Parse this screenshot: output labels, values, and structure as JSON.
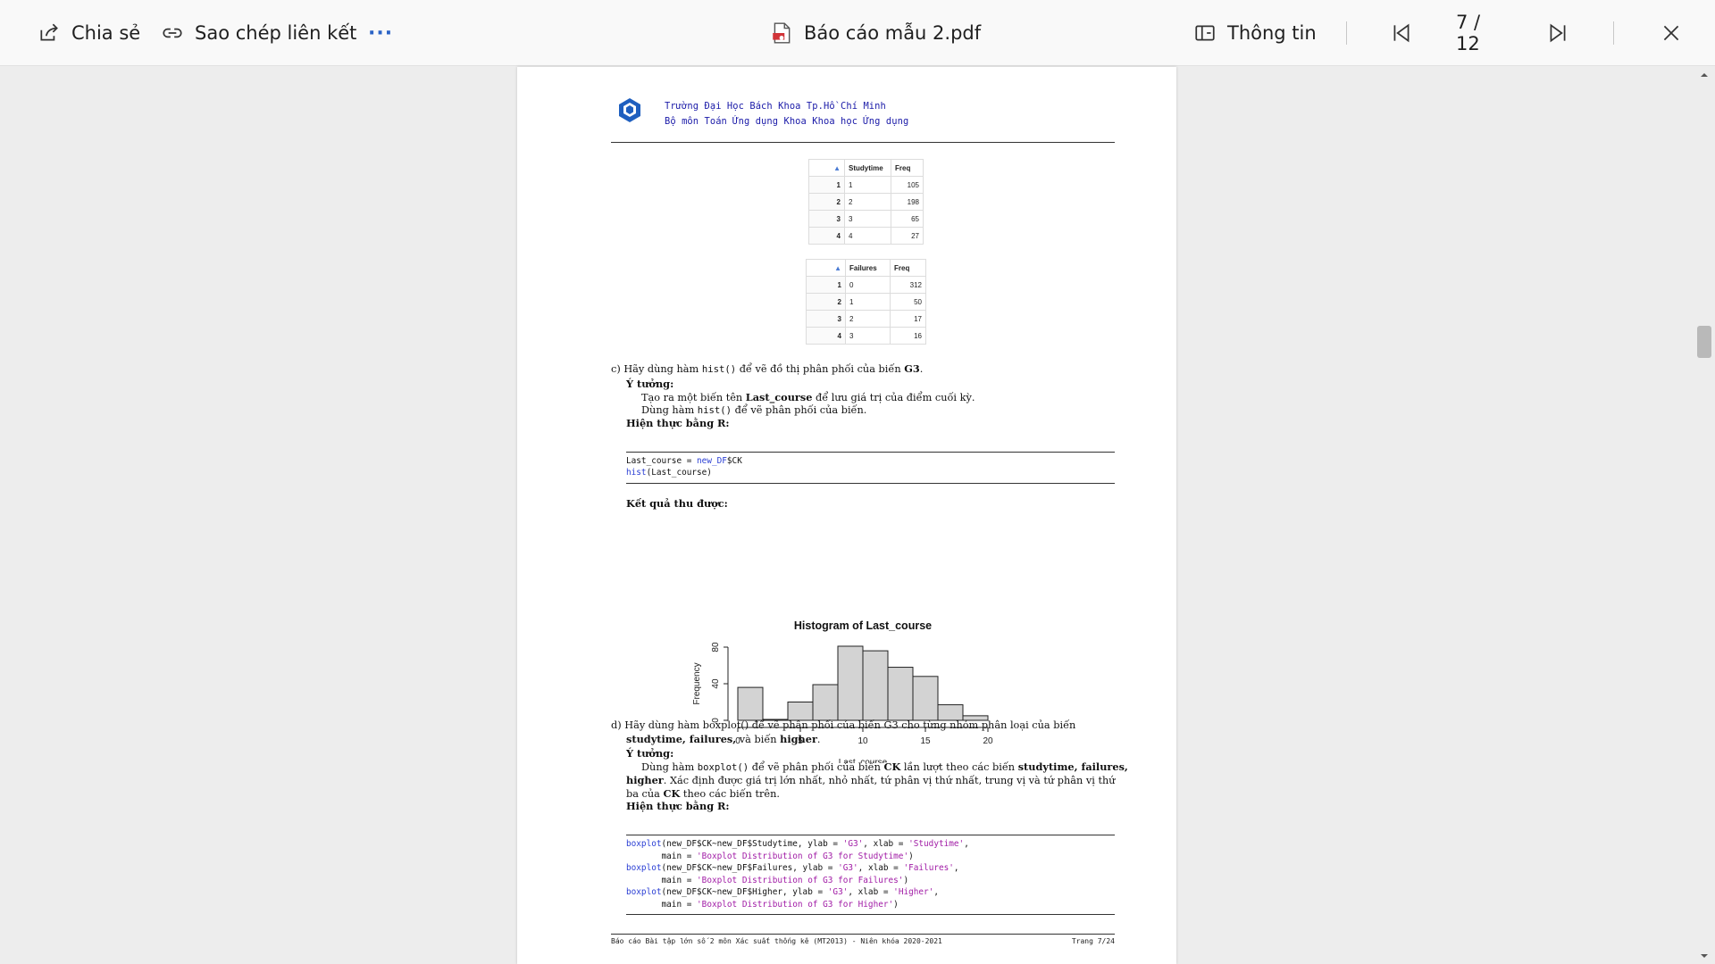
{
  "toolbar": {
    "share_label": "Chia sẻ",
    "copy_link_label": "Sao chép liên kết",
    "more_label": "···",
    "file_name": "Báo cáo mẫu 2.pdf",
    "info_label": "Thông tin",
    "page_indicator": "7 / 12"
  },
  "header": {
    "line1": "Trường Đại Học Bách Khoa Tp.Hồ Chí Minh",
    "line2": "Bộ môn Toán Ứng dụng Khoa Khoa học Ứng dụng"
  },
  "table_studytime": {
    "columns": [
      "Studytime",
      "Freq"
    ],
    "rows": [
      {
        "idx": "1",
        "key": "1",
        "freq": "105"
      },
      {
        "idx": "2",
        "key": "2",
        "freq": "198"
      },
      {
        "idx": "3",
        "key": "3",
        "freq": "65"
      },
      {
        "idx": "4",
        "key": "4",
        "freq": "27"
      }
    ]
  },
  "table_failures": {
    "columns": [
      "Failures",
      "Freq"
    ],
    "rows": [
      {
        "idx": "1",
        "key": "0",
        "freq": "312"
      },
      {
        "idx": "2",
        "key": "1",
        "freq": "50"
      },
      {
        "idx": "3",
        "key": "2",
        "freq": "17"
      },
      {
        "idx": "4",
        "key": "3",
        "freq": "16"
      }
    ]
  },
  "section_c": {
    "item_label": "c)",
    "prompt_pre": "Hãy dùng hàm",
    "prompt_func": "hist()",
    "prompt_post": "để vẽ đồ thị phân phối của biến",
    "prompt_var": "G3",
    "prompt_end": ".",
    "idea_title": "Ý tưởng:",
    "idea_line1_pre": "Tạo ra một biến tên",
    "idea_line1_var": "Last_course",
    "idea_line1_post": "để lưu giá trị của điểm cuối kỳ.",
    "idea_line2_pre": "Dùng hàm",
    "idea_line2_func": "hist()",
    "idea_line2_post": "để vẽ phân phối của biến.",
    "impl_title": "Hiện thực bằng R:",
    "code_line1_a": "Last_course = ",
    "code_line1_kw": "new_DF",
    "code_line1_b": "$CK",
    "code_line2_kw": "hist",
    "code_line2_b": "(Last_course)",
    "result_title": "Kết quả thu được:"
  },
  "section_d": {
    "item_label": "d)",
    "line1": "Hãy dùng hàm boxplot() để vẽ phân phối của biến G3 cho từng nhóm phân loại của biến",
    "line2_a": "studytime, failures,",
    "line2_b": " và biến ",
    "line2_c": "higher",
    "line2_d": ".",
    "idea_title": "Ý tưởng:",
    "idea_l1_a": "Dùng hàm ",
    "idea_l1_func": "boxplot()",
    "idea_l1_b": " để vẽ phân phối của biến ",
    "idea_l1_var": "CK",
    "idea_l1_c": " lần lượt theo các biến ",
    "idea_l1_d": "studytime, failures,",
    "idea_l2_a": "higher",
    "idea_l2_b": ". Xác định được giá trị lớn nhất, nhỏ nhất, tứ phân vị thứ nhất, trung vị và tứ phân vị thứ",
    "idea_l3_a": "ba của ",
    "idea_l3_var": "CK",
    "idea_l3_b": " theo các biến trên.",
    "impl_title": "Hiện thực bằng R:",
    "code": [
      {
        "fn": "boxplot",
        "args": "(new_DF$CK~new_DF$Studytime, ylab = ",
        "s1": "'G3'",
        "mid": ", xlab = ",
        "s2": "'Studytime'",
        "end": ","
      },
      {
        "indent": "       main = ",
        "s3": "'Boxplot Distribution of G3 for Studytime'",
        "close": ")"
      },
      {
        "fn": "boxplot",
        "args": "(new_DF$CK~new_DF$Failures, ylab = ",
        "s1": "'G3'",
        "mid": ", xlab = ",
        "s2": "'Failures'",
        "end": ","
      },
      {
        "indent": "       main = ",
        "s3": "'Boxplot Distribution of G3 for Failures'",
        "close": ")"
      },
      {
        "fn": "boxplot",
        "args": "(new_DF$CK~new_DF$Higher, ylab = ",
        "s1": "'G3'",
        "mid": ", xlab = ",
        "s2": "'Higher'",
        "end": ","
      },
      {
        "indent": "       main = ",
        "s3": "'Boxplot Distribution of G3 for Higher'",
        "close": ")"
      }
    ]
  },
  "footer": {
    "left": "Báo cáo Bài tập lớn số 2 môn Xác suất thống kê (MT2013) - Niên khóa 2020-2021",
    "right": "Trang 7/24"
  },
  "chart_data": {
    "type": "bar",
    "title": "Histogram of Last_course",
    "xlabel": "Last_course",
    "ylabel": "Frequency",
    "bins": [
      [
        0,
        2
      ],
      [
        2,
        4
      ],
      [
        4,
        6
      ],
      [
        6,
        8
      ],
      [
        8,
        10
      ],
      [
        10,
        12
      ],
      [
        12,
        14
      ],
      [
        14,
        16
      ],
      [
        16,
        18
      ],
      [
        18,
        20
      ]
    ],
    "values": [
      36,
      1,
      20,
      39,
      81,
      76,
      58,
      48,
      17,
      5
    ],
    "xticks": [
      0,
      5,
      10,
      15,
      20
    ],
    "yticks": [
      0,
      40,
      80
    ],
    "xlim": [
      0,
      20
    ],
    "ylim": [
      0,
      85
    ],
    "bar_color": "#d3d3d3"
  }
}
